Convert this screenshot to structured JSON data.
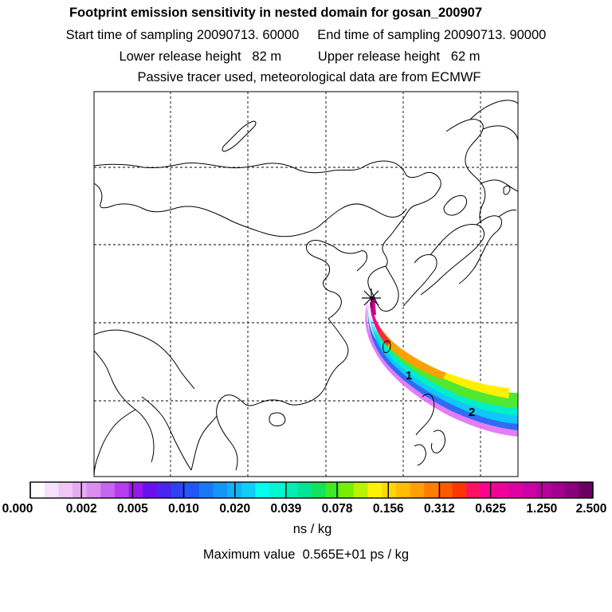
{
  "title": "Footprint emission sensitivity in nested domain for gosan_200907",
  "line_sampling_start": "Start time of sampling 20090713. 60000",
  "line_sampling_end": "End time of sampling 20090713. 90000",
  "line_release_lower": "Lower release height   82 m",
  "line_release_upper": "Upper release height   62 m",
  "subtitle": "Passive tracer used, meteorological data are from ECMWF",
  "colorbar": {
    "labels": [
      "0.000",
      "0.002",
      "0.005",
      "0.010",
      "0.020",
      "0.039",
      "0.078",
      "0.156",
      "0.312",
      "0.625",
      "1.250",
      "2.500"
    ],
    "colors": [
      "#ffffff",
      "#f6e2fb",
      "#eec7f7",
      "#e6acf2",
      "#d98ef0",
      "#c865ef",
      "#b53def",
      "#9a16ee",
      "#6a10f0",
      "#4a24f2",
      "#3040f4",
      "#2356f6",
      "#1a78f8",
      "#1495f8",
      "#10b2f8",
      "#0ecff8",
      "#00ffee",
      "#00f8d2",
      "#00efb6",
      "#00e696",
      "#10e45c",
      "#40e828",
      "#7aee00",
      "#b8f400",
      "#fff200",
      "#ffd800",
      "#ffbe00",
      "#ffa200",
      "#ff7e00",
      "#ff5a00",
      "#ff3600",
      "#ff1060",
      "#ff0090",
      "#f0009a",
      "#de00a0",
      "#cc00a4",
      "#b8009a",
      "#a0008c",
      "#88007c",
      "#6a0060"
    ],
    "unit": "ns / kg"
  },
  "max_value": "Maximum value  0.565E+01 ps / kg",
  "markers": {
    "release_site": "gosan",
    "time_label_1": "1",
    "time_label_2": "2"
  }
}
